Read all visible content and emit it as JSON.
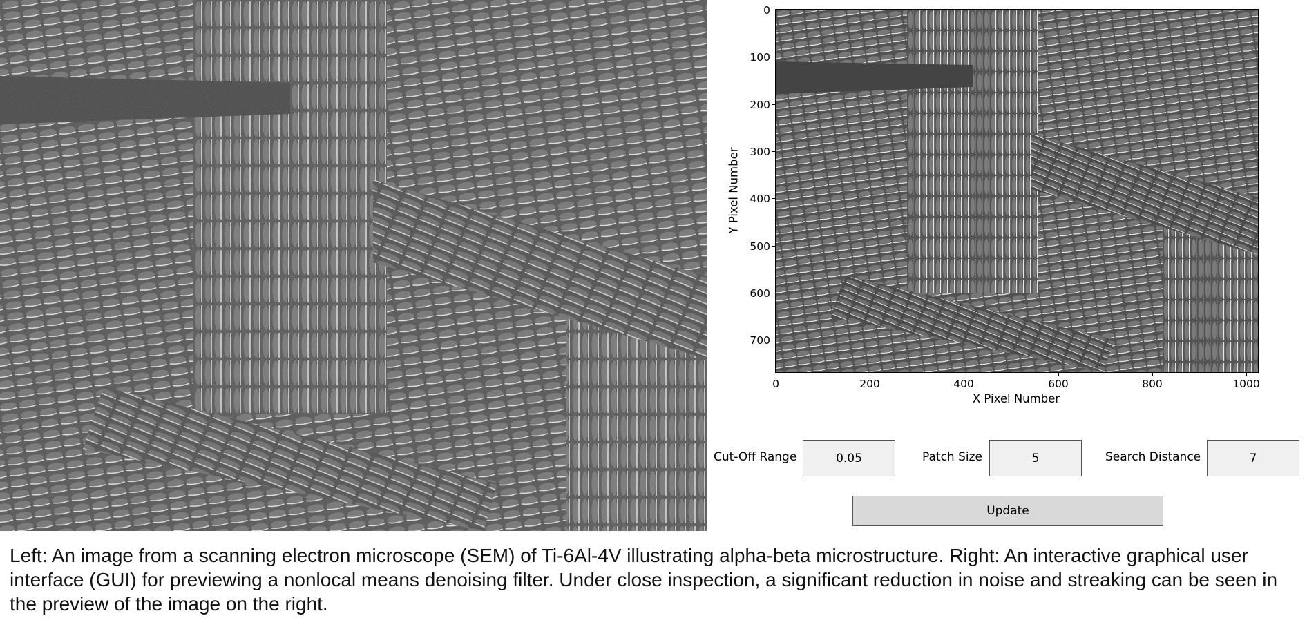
{
  "left_image": {
    "description_icon": "sem-micrograph-image"
  },
  "plot": {
    "ylabel": "Y Pixel Number",
    "xlabel": "X Pixel Number",
    "y_ticks": [
      "0",
      "100",
      "200",
      "300",
      "400",
      "500",
      "600",
      "700"
    ],
    "x_ticks": [
      "0",
      "200",
      "400",
      "600",
      "800",
      "1000"
    ],
    "x_range": [
      0,
      1024
    ],
    "y_range": [
      0,
      768
    ]
  },
  "controls": {
    "cutoff_label": "Cut-Off Range",
    "cutoff_value": "0.05",
    "patch_label": "Patch Size",
    "patch_value": "5",
    "search_label": "Search Distance",
    "search_value": "7",
    "update_label": "Update"
  },
  "caption": "Left: An image from a scanning electron microscope (SEM) of Ti-6Al-4V illustrating alpha-beta microstructure. Right: An interactive graphical user interface (GUI) for previewing a nonlocal means denoising filter. Under close inspection, a significant reduction in noise and streaking can be seen in the preview of the image on the right."
}
